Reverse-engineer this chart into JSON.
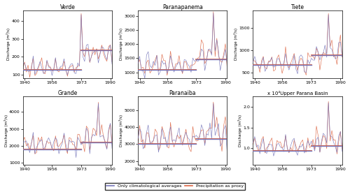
{
  "titles": [
    "Verde",
    "Paranapanema",
    "Tiete",
    "Grande",
    "Paranaiba",
    "Upper Parana Basin"
  ],
  "xlabel": "",
  "ylabel": "Discharge (m³/s)",
  "x_start": 1939,
  "x_end": 1991,
  "xticks": [
    1940,
    1956,
    1973,
    1990
  ],
  "color_clim": "#7777bb",
  "color_proxy": "#dd6644",
  "legend_clim": "Only climatological averages",
  "legend_proxy": "Precipitation as proxy",
  "split_year": 1973,
  "subplots": [
    {
      "ylim": [
        80,
        460
      ],
      "yticks": [
        100,
        200,
        300,
        400
      ],
      "mean_pre": 125,
      "mean_post": 237,
      "base_pre": 140,
      "base_post": 215,
      "amp_pre": 50,
      "amp_post": 65,
      "spike_year": 1973,
      "spike_val": 435,
      "period": 4.5,
      "scale_label": ""
    },
    {
      "ylim": [
        800,
        3200
      ],
      "yticks": [
        1000,
        1500,
        2000,
        2500,
        3000
      ],
      "mean_pre": 1100,
      "mean_post": 1450,
      "base_pre": 1250,
      "base_post": 1600,
      "amp_pre": 380,
      "amp_post": 550,
      "spike_year": 1983,
      "spike_val": 3100,
      "period": 4.5,
      "scale_label": ""
    },
    {
      "ylim": [
        380,
        1900
      ],
      "yticks": [
        500,
        1000,
        1500
      ],
      "mean_pre": 680,
      "mean_post": 900,
      "base_pre": 720,
      "base_post": 900,
      "amp_pre": 220,
      "amp_post": 320,
      "spike_year": 1983,
      "spike_val": 1800,
      "period": 4.5,
      "scale_label": ""
    },
    {
      "ylim": [
        900,
        4900
      ],
      "yticks": [
        1000,
        2000,
        3000,
        4000
      ],
      "mean_pre": 1800,
      "mean_post": 2200,
      "base_pre": 2100,
      "base_post": 2500,
      "amp_pre": 650,
      "amp_post": 850,
      "spike_year": 1983,
      "spike_val": 4500,
      "period": 4.5,
      "scale_label": ""
    },
    {
      "ylim": [
        1800,
        5800
      ],
      "yticks": [
        2000,
        3000,
        4000,
        5000
      ],
      "mean_pre": 3000,
      "mean_post": 3300,
      "base_pre": 3300,
      "base_post": 3600,
      "amp_pre": 800,
      "amp_post": 900,
      "spike_year": 1983,
      "spike_val": 5400,
      "period": 4.5,
      "scale_label": ""
    },
    {
      "ylim": [
        0.6,
        2.25
      ],
      "yticks": [
        1.0,
        1.5,
        2.0
      ],
      "mean_pre": 0.93,
      "mean_post": 1.05,
      "base_pre": 1.05,
      "base_post": 1.15,
      "amp_pre": 0.24,
      "amp_post": 0.32,
      "spike_year": 1983,
      "spike_val": 2.1,
      "period": 4.5,
      "scale_label": "x 10⁴"
    }
  ]
}
